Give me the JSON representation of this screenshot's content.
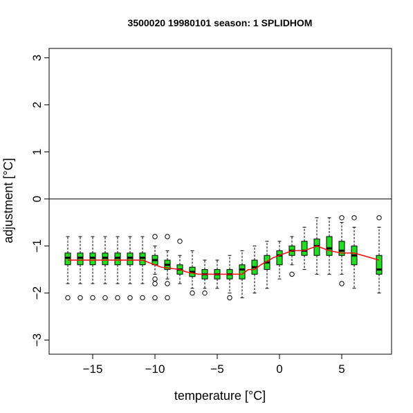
{
  "chart_data": {
    "type": "boxplot",
    "title": "3500020 19980101 season: 1 SPLIDHOM",
    "xlabel": "temperature [°C]",
    "ylabel": "adjustment [°C]",
    "xlim": [
      -18.5,
      9
    ],
    "ylim": [
      -3.3,
      3.2
    ],
    "xticks": [
      -15,
      -10,
      -5,
      0,
      5
    ],
    "xtick_labels": [
      "−15",
      "−10",
      "−5",
      "0",
      "5"
    ],
    "yticks": [
      -3,
      -2,
      -1,
      0,
      1,
      2,
      3
    ],
    "ytick_labels": [
      "−3",
      "−2",
      "−1",
      "0",
      "1",
      "2",
      "3"
    ],
    "hline_y": 0,
    "box_color": "#22dd22",
    "line_color": "#ff0000",
    "boxes": [
      {
        "x": -17,
        "lower_whisker": -1.8,
        "q1": -1.4,
        "median": -1.25,
        "q3": -1.15,
        "upper_whisker": -0.8,
        "outliers": [
          -2.1
        ]
      },
      {
        "x": -16,
        "lower_whisker": -1.8,
        "q1": -1.4,
        "median": -1.25,
        "q3": -1.15,
        "upper_whisker": -0.8,
        "outliers": [
          -2.1
        ]
      },
      {
        "x": -15,
        "lower_whisker": -1.8,
        "q1": -1.4,
        "median": -1.25,
        "q3": -1.15,
        "upper_whisker": -0.8,
        "outliers": [
          -2.1
        ]
      },
      {
        "x": -14,
        "lower_whisker": -1.8,
        "q1": -1.4,
        "median": -1.25,
        "q3": -1.15,
        "upper_whisker": -0.8,
        "outliers": [
          -2.1
        ]
      },
      {
        "x": -13,
        "lower_whisker": -1.8,
        "q1": -1.4,
        "median": -1.25,
        "q3": -1.15,
        "upper_whisker": -0.8,
        "outliers": [
          -2.1
        ]
      },
      {
        "x": -12,
        "lower_whisker": -1.8,
        "q1": -1.4,
        "median": -1.25,
        "q3": -1.15,
        "upper_whisker": -0.8,
        "outliers": [
          -2.1
        ]
      },
      {
        "x": -11,
        "lower_whisker": -1.8,
        "q1": -1.4,
        "median": -1.25,
        "q3": -1.15,
        "upper_whisker": -0.8,
        "outliers": [
          -2.1
        ]
      },
      {
        "x": -10,
        "lower_whisker": -1.6,
        "q1": -1.4,
        "median": -1.3,
        "q3": -1.2,
        "upper_whisker": -1.0,
        "outliers": [
          -0.8,
          -1.7,
          -1.8,
          -2.1
        ]
      },
      {
        "x": -9,
        "lower_whisker": -1.7,
        "q1": -1.5,
        "median": -1.4,
        "q3": -1.3,
        "upper_whisker": -1.1,
        "outliers": [
          -0.8,
          -1.8,
          -2.1
        ]
      },
      {
        "x": -8,
        "lower_whisker": -1.8,
        "q1": -1.6,
        "median": -1.5,
        "q3": -1.4,
        "upper_whisker": -1.2,
        "outliers": [
          -0.9
        ]
      },
      {
        "x": -7,
        "lower_whisker": -1.9,
        "q1": -1.65,
        "median": -1.55,
        "q3": -1.45,
        "upper_whisker": -1.1,
        "outliers": [
          -2.0
        ]
      },
      {
        "x": -6,
        "lower_whisker": -1.9,
        "q1": -1.7,
        "median": -1.6,
        "q3": -1.5,
        "upper_whisker": -1.3,
        "outliers": [
          -2.0
        ]
      },
      {
        "x": -5,
        "lower_whisker": -1.9,
        "q1": -1.7,
        "median": -1.6,
        "q3": -1.5,
        "upper_whisker": -1.3,
        "outliers": []
      },
      {
        "x": -4,
        "lower_whisker": -2.0,
        "q1": -1.7,
        "median": -1.6,
        "q3": -1.5,
        "upper_whisker": -1.2,
        "outliers": [
          -2.1
        ]
      },
      {
        "x": -3,
        "lower_whisker": -2.1,
        "q1": -1.7,
        "median": -1.5,
        "q3": -1.4,
        "upper_whisker": -1.1,
        "outliers": []
      },
      {
        "x": -2,
        "lower_whisker": -2.0,
        "q1": -1.6,
        "median": -1.45,
        "q3": -1.3,
        "upper_whisker": -1.0,
        "outliers": []
      },
      {
        "x": -1,
        "lower_whisker": -1.9,
        "q1": -1.5,
        "median": -1.35,
        "q3": -1.2,
        "upper_whisker": -0.9,
        "outliers": []
      },
      {
        "x": 0,
        "lower_whisker": -1.7,
        "q1": -1.4,
        "median": -1.2,
        "q3": -1.1,
        "upper_whisker": -0.9,
        "outliers": []
      },
      {
        "x": 1,
        "lower_whisker": -1.4,
        "q1": -1.2,
        "median": -1.1,
        "q3": -1.0,
        "upper_whisker": -0.8,
        "outliers": [
          -1.6
        ]
      },
      {
        "x": 2,
        "lower_whisker": -1.5,
        "q1": -1.2,
        "median": -1.1,
        "q3": -0.9,
        "upper_whisker": -0.6,
        "outliers": []
      },
      {
        "x": 3,
        "lower_whisker": -1.6,
        "q1": -1.2,
        "median": -1.0,
        "q3": -0.85,
        "upper_whisker": -0.4,
        "outliers": []
      },
      {
        "x": 4,
        "lower_whisker": -1.6,
        "q1": -1.2,
        "median": -1.05,
        "q3": -0.8,
        "upper_whisker": -0.4,
        "outliers": []
      },
      {
        "x": 5,
        "lower_whisker": -1.6,
        "q1": -1.2,
        "median": -1.1,
        "q3": -0.9,
        "upper_whisker": -0.5,
        "outliers": [
          -0.4,
          -1.8
        ]
      },
      {
        "x": 6,
        "lower_whisker": -1.9,
        "q1": -1.4,
        "median": -1.2,
        "q3": -1.0,
        "upper_whisker": -0.6,
        "outliers": [
          -0.4
        ]
      },
      {
        "x": 8,
        "lower_whisker": -2.0,
        "q1": -1.6,
        "median": -1.5,
        "q3": -1.2,
        "upper_whisker": -0.6,
        "outliers": [
          -0.4
        ]
      }
    ],
    "trend_line": {
      "x": [
        -17,
        -11,
        -10.5,
        -9.5,
        -8,
        -7.5,
        -6.5,
        -3,
        -2.5,
        -2,
        -1.5,
        -0.5,
        0,
        0.5,
        1,
        2,
        3,
        4,
        5,
        6,
        8
      ],
      "y": [
        -1.3,
        -1.3,
        -1.35,
        -1.45,
        -1.5,
        -1.55,
        -1.6,
        -1.6,
        -1.5,
        -1.5,
        -1.4,
        -1.25,
        -1.2,
        -1.15,
        -1.1,
        -1.1,
        -1.0,
        -1.1,
        -1.15,
        -1.15,
        -1.3
      ]
    }
  }
}
